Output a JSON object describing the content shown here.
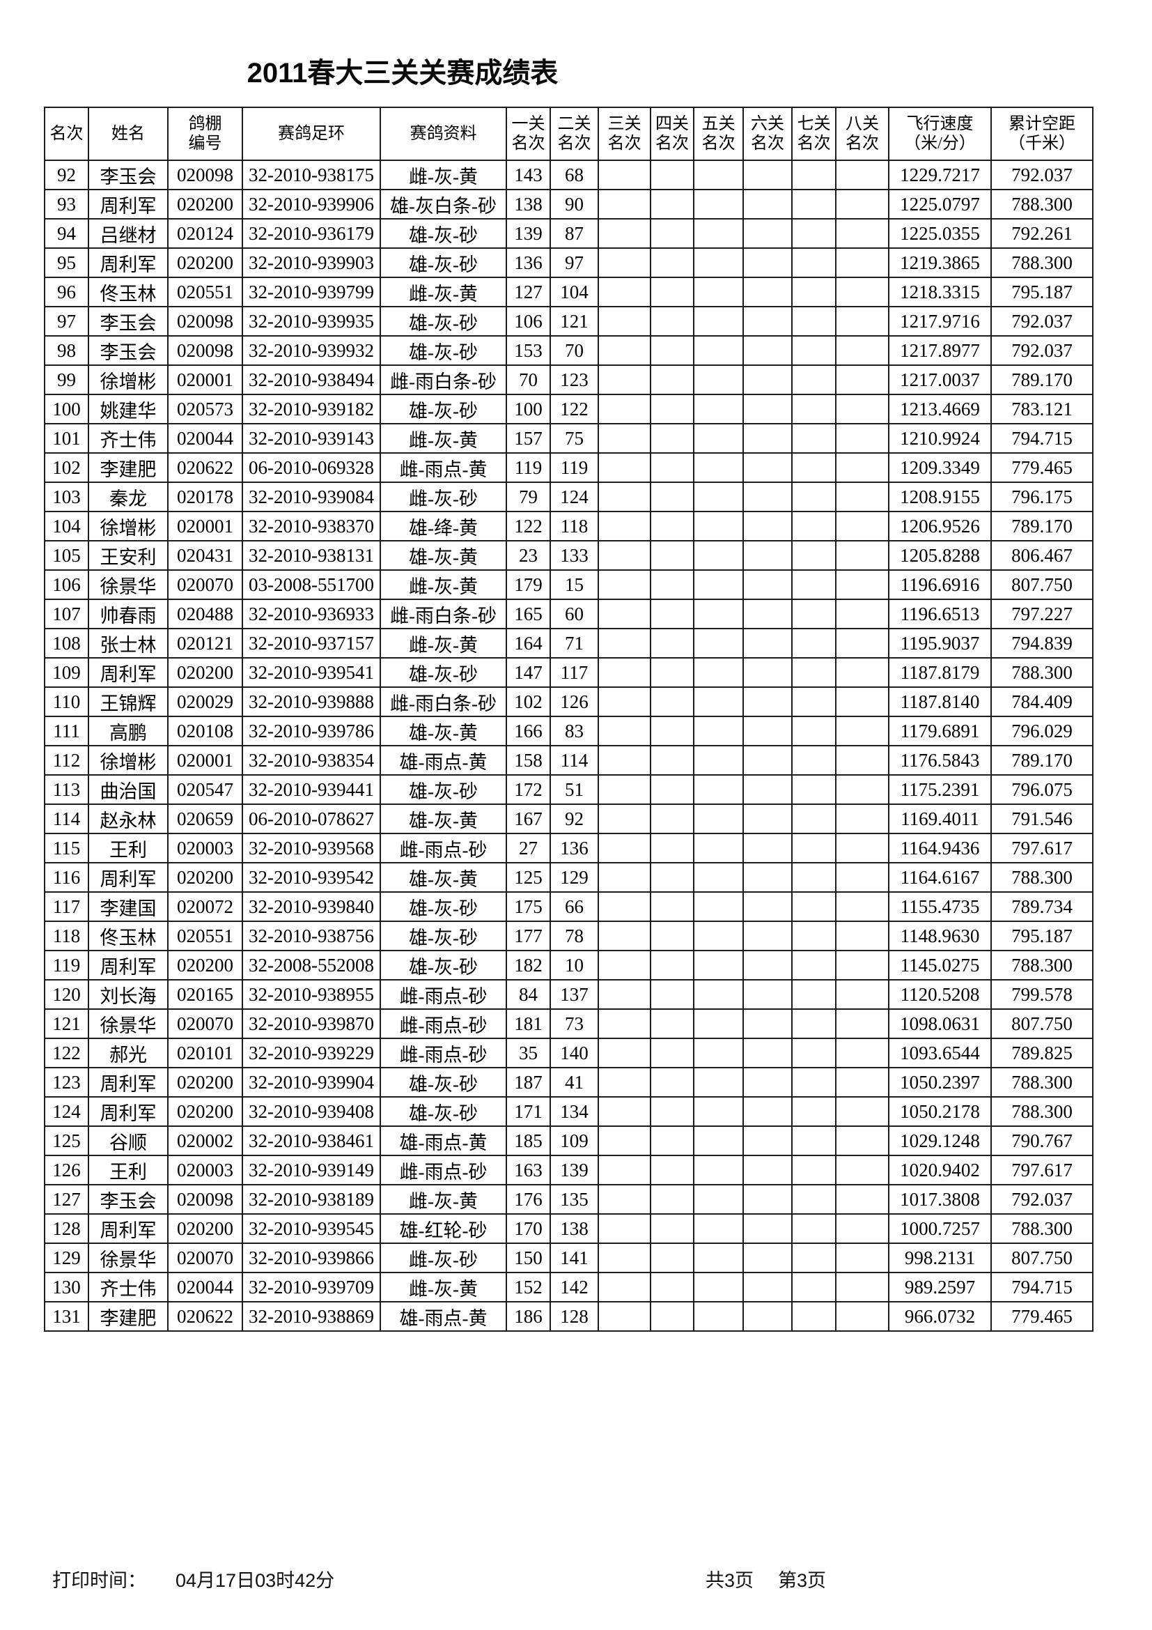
{
  "page": {
    "title": "2011春大三关关赛成绩表"
  },
  "table": {
    "header_lines": [
      [
        "名次"
      ],
      [
        "姓名"
      ],
      [
        "鸽棚",
        "编号"
      ],
      [
        "赛鸽足环"
      ],
      [
        "赛鸽资料"
      ],
      [
        "一关",
        "名次"
      ],
      [
        "二关",
        "名次"
      ],
      [
        "三关",
        "名次"
      ],
      [
        "四关",
        "名次"
      ],
      [
        "五关",
        "名次"
      ],
      [
        "六关",
        "名次"
      ],
      [
        "七关",
        "名次"
      ],
      [
        "八关",
        "名次"
      ],
      [
        "飞行速度",
        "（米/分）"
      ],
      [
        "累计空距",
        "（千米）"
      ]
    ],
    "rows": [
      [
        "92",
        "李玉会",
        "020098",
        "32-2010-938175",
        "雌-灰-黄",
        "143",
        "68",
        "",
        "",
        "",
        "",
        "",
        "",
        "1229.7217",
        "792.037"
      ],
      [
        "93",
        "周利军",
        "020200",
        "32-2010-939906",
        "雄-灰白条-砂",
        "138",
        "90",
        "",
        "",
        "",
        "",
        "",
        "",
        "1225.0797",
        "788.300"
      ],
      [
        "94",
        "吕继材",
        "020124",
        "32-2010-936179",
        "雄-灰-砂",
        "139",
        "87",
        "",
        "",
        "",
        "",
        "",
        "",
        "1225.0355",
        "792.261"
      ],
      [
        "95",
        "周利军",
        "020200",
        "32-2010-939903",
        "雄-灰-砂",
        "136",
        "97",
        "",
        "",
        "",
        "",
        "",
        "",
        "1219.3865",
        "788.300"
      ],
      [
        "96",
        "佟玉林",
        "020551",
        "32-2010-939799",
        "雌-灰-黄",
        "127",
        "104",
        "",
        "",
        "",
        "",
        "",
        "",
        "1218.3315",
        "795.187"
      ],
      [
        "97",
        "李玉会",
        "020098",
        "32-2010-939935",
        "雄-灰-砂",
        "106",
        "121",
        "",
        "",
        "",
        "",
        "",
        "",
        "1217.9716",
        "792.037"
      ],
      [
        "98",
        "李玉会",
        "020098",
        "32-2010-939932",
        "雄-灰-砂",
        "153",
        "70",
        "",
        "",
        "",
        "",
        "",
        "",
        "1217.8977",
        "792.037"
      ],
      [
        "99",
        "徐增彬",
        "020001",
        "32-2010-938494",
        "雌-雨白条-砂",
        "70",
        "123",
        "",
        "",
        "",
        "",
        "",
        "",
        "1217.0037",
        "789.170"
      ],
      [
        "100",
        "姚建华",
        "020573",
        "32-2010-939182",
        "雄-灰-砂",
        "100",
        "122",
        "",
        "",
        "",
        "",
        "",
        "",
        "1213.4669",
        "783.121"
      ],
      [
        "101",
        "齐士伟",
        "020044",
        "32-2010-939143",
        "雌-灰-黄",
        "157",
        "75",
        "",
        "",
        "",
        "",
        "",
        "",
        "1210.9924",
        "794.715"
      ],
      [
        "102",
        "李建肥",
        "020622",
        "06-2010-069328",
        "雌-雨点-黄",
        "119",
        "119",
        "",
        "",
        "",
        "",
        "",
        "",
        "1209.3349",
        "779.465"
      ],
      [
        "103",
        "秦龙",
        "020178",
        "32-2010-939084",
        "雌-灰-砂",
        "79",
        "124",
        "",
        "",
        "",
        "",
        "",
        "",
        "1208.9155",
        "796.175"
      ],
      [
        "104",
        "徐增彬",
        "020001",
        "32-2010-938370",
        "雄-绛-黄",
        "122",
        "118",
        "",
        "",
        "",
        "",
        "",
        "",
        "1206.9526",
        "789.170"
      ],
      [
        "105",
        "王安利",
        "020431",
        "32-2010-938131",
        "雄-灰-黄",
        "23",
        "133",
        "",
        "",
        "",
        "",
        "",
        "",
        "1205.8288",
        "806.467"
      ],
      [
        "106",
        "徐景华",
        "020070",
        "03-2008-551700",
        "雌-灰-黄",
        "179",
        "15",
        "",
        "",
        "",
        "",
        "",
        "",
        "1196.6916",
        "807.750"
      ],
      [
        "107",
        "帅春雨",
        "020488",
        "32-2010-936933",
        "雌-雨白条-砂",
        "165",
        "60",
        "",
        "",
        "",
        "",
        "",
        "",
        "1196.6513",
        "797.227"
      ],
      [
        "108",
        "张士林",
        "020121",
        "32-2010-937157",
        "雌-灰-黄",
        "164",
        "71",
        "",
        "",
        "",
        "",
        "",
        "",
        "1195.9037",
        "794.839"
      ],
      [
        "109",
        "周利军",
        "020200",
        "32-2010-939541",
        "雄-灰-砂",
        "147",
        "117",
        "",
        "",
        "",
        "",
        "",
        "",
        "1187.8179",
        "788.300"
      ],
      [
        "110",
        "王锦辉",
        "020029",
        "32-2010-939888",
        "雌-雨白条-砂",
        "102",
        "126",
        "",
        "",
        "",
        "",
        "",
        "",
        "1187.8140",
        "784.409"
      ],
      [
        "111",
        "高鹏",
        "020108",
        "32-2010-939786",
        "雄-灰-黄",
        "166",
        "83",
        "",
        "",
        "",
        "",
        "",
        "",
        "1179.6891",
        "796.029"
      ],
      [
        "112",
        "徐增彬",
        "020001",
        "32-2010-938354",
        "雄-雨点-黄",
        "158",
        "114",
        "",
        "",
        "",
        "",
        "",
        "",
        "1176.5843",
        "789.170"
      ],
      [
        "113",
        "曲治国",
        "020547",
        "32-2010-939441",
        "雄-灰-砂",
        "172",
        "51",
        "",
        "",
        "",
        "",
        "",
        "",
        "1175.2391",
        "796.075"
      ],
      [
        "114",
        "赵永林",
        "020659",
        "06-2010-078627",
        "雄-灰-黄",
        "167",
        "92",
        "",
        "",
        "",
        "",
        "",
        "",
        "1169.4011",
        "791.546"
      ],
      [
        "115",
        "王利",
        "020003",
        "32-2010-939568",
        "雌-雨点-砂",
        "27",
        "136",
        "",
        "",
        "",
        "",
        "",
        "",
        "1164.9436",
        "797.617"
      ],
      [
        "116",
        "周利军",
        "020200",
        "32-2010-939542",
        "雄-灰-黄",
        "125",
        "129",
        "",
        "",
        "",
        "",
        "",
        "",
        "1164.6167",
        "788.300"
      ],
      [
        "117",
        "李建国",
        "020072",
        "32-2010-939840",
        "雄-灰-砂",
        "175",
        "66",
        "",
        "",
        "",
        "",
        "",
        "",
        "1155.4735",
        "789.734"
      ],
      [
        "118",
        "佟玉林",
        "020551",
        "32-2010-938756",
        "雄-灰-砂",
        "177",
        "78",
        "",
        "",
        "",
        "",
        "",
        "",
        "1148.9630",
        "795.187"
      ],
      [
        "119",
        "周利军",
        "020200",
        "32-2008-552008",
        "雄-灰-砂",
        "182",
        "10",
        "",
        "",
        "",
        "",
        "",
        "",
        "1145.0275",
        "788.300"
      ],
      [
        "120",
        "刘长海",
        "020165",
        "32-2010-938955",
        "雌-雨点-砂",
        "84",
        "137",
        "",
        "",
        "",
        "",
        "",
        "",
        "1120.5208",
        "799.578"
      ],
      [
        "121",
        "徐景华",
        "020070",
        "32-2010-939870",
        "雌-雨点-砂",
        "181",
        "73",
        "",
        "",
        "",
        "",
        "",
        "",
        "1098.0631",
        "807.750"
      ],
      [
        "122",
        "郝光",
        "020101",
        "32-2010-939229",
        "雌-雨点-砂",
        "35",
        "140",
        "",
        "",
        "",
        "",
        "",
        "",
        "1093.6544",
        "789.825"
      ],
      [
        "123",
        "周利军",
        "020200",
        "32-2010-939904",
        "雄-灰-砂",
        "187",
        "41",
        "",
        "",
        "",
        "",
        "",
        "",
        "1050.2397",
        "788.300"
      ],
      [
        "124",
        "周利军",
        "020200",
        "32-2010-939408",
        "雄-灰-砂",
        "171",
        "134",
        "",
        "",
        "",
        "",
        "",
        "",
        "1050.2178",
        "788.300"
      ],
      [
        "125",
        "谷顺",
        "020002",
        "32-2010-938461",
        "雄-雨点-黄",
        "185",
        "109",
        "",
        "",
        "",
        "",
        "",
        "",
        "1029.1248",
        "790.767"
      ],
      [
        "126",
        "王利",
        "020003",
        "32-2010-939149",
        "雌-雨点-砂",
        "163",
        "139",
        "",
        "",
        "",
        "",
        "",
        "",
        "1020.9402",
        "797.617"
      ],
      [
        "127",
        "李玉会",
        "020098",
        "32-2010-938189",
        "雌-灰-黄",
        "176",
        "135",
        "",
        "",
        "",
        "",
        "",
        "",
        "1017.3808",
        "792.037"
      ],
      [
        "128",
        "周利军",
        "020200",
        "32-2010-939545",
        "雄-红轮-砂",
        "170",
        "138",
        "",
        "",
        "",
        "",
        "",
        "",
        "1000.7257",
        "788.300"
      ],
      [
        "129",
        "徐景华",
        "020070",
        "32-2010-939866",
        "雌-灰-砂",
        "150",
        "141",
        "",
        "",
        "",
        "",
        "",
        "",
        "998.2131",
        "807.750"
      ],
      [
        "130",
        "齐士伟",
        "020044",
        "32-2010-939709",
        "雌-灰-黄",
        "152",
        "142",
        "",
        "",
        "",
        "",
        "",
        "",
        "989.2597",
        "794.715"
      ],
      [
        "131",
        "李建肥",
        "020622",
        "32-2010-938869",
        "雄-雨点-黄",
        "186",
        "128",
        "",
        "",
        "",
        "",
        "",
        "",
        "966.0732",
        "779.465"
      ]
    ]
  },
  "footer": {
    "print_time_label": "打印时间：",
    "print_time_value": "04月17日03时42分",
    "total_pages": "共3页",
    "current_page": "第3页"
  }
}
